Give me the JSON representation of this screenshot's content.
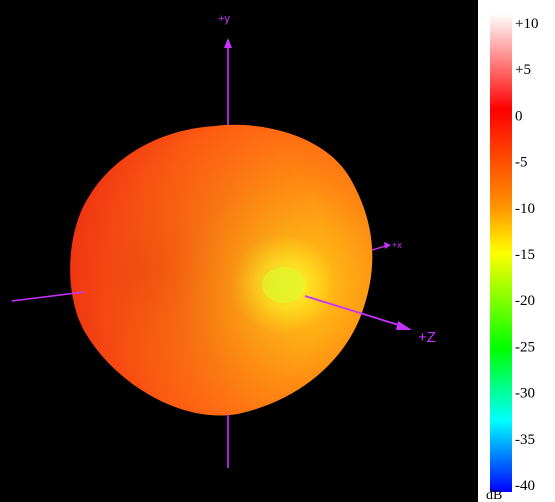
{
  "viewer": {
    "background": "#000000",
    "axis_color": "#c832ff"
  },
  "axes": {
    "y_label": "+y",
    "x_label": "+x",
    "z_label": "+Z"
  },
  "colorbar": {
    "unit": "dB",
    "ticks": [
      "+10",
      "+5",
      "0",
      "-5",
      "-10",
      "-15",
      "-20",
      "-25",
      "-30",
      "-35",
      "-40"
    ],
    "colors": [
      "#ffffff",
      "#ff0000",
      "#ff8c00",
      "#ffff00",
      "#00ff00",
      "#00ffff",
      "#0000ff"
    ],
    "range_db": [
      -40,
      10
    ]
  },
  "pattern": {
    "shape": "radiation-pattern-sphere",
    "hotspot_color": "#dfff2a",
    "body_color": "#ff6a10"
  }
}
